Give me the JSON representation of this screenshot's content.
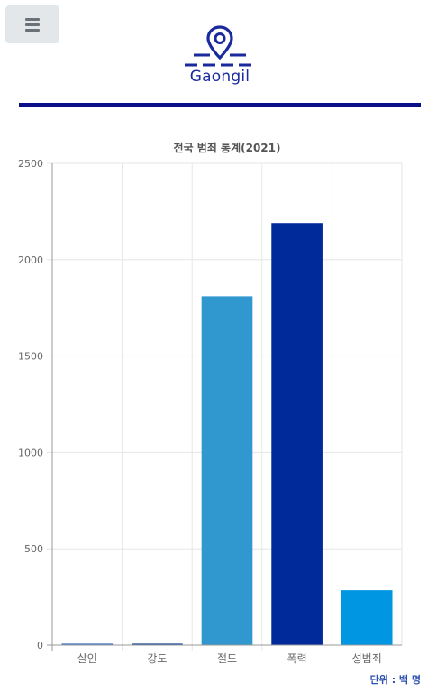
{
  "header": {
    "menu_icon": "hamburger-icon",
    "logo_icon": "location-pin-icon",
    "logo_text": "Gaongil",
    "rule_color": "#0b0f88"
  },
  "chart_data": {
    "type": "bar",
    "title": "전국 범죄 통계(2021)",
    "categories": [
      "살인",
      "강도",
      "절도",
      "폭력",
      "성범죄"
    ],
    "values": [
      8,
      8,
      1810,
      2190,
      285
    ],
    "colors": [
      "#4a7dc4",
      "#2d5aa0",
      "#3097cf",
      "#00299a",
      "#0096e2"
    ],
    "ylim": [
      0,
      2500
    ],
    "yticks": [
      0,
      500,
      1000,
      1500,
      2000,
      2500
    ],
    "ytick_labels": [
      "0",
      "500",
      "1000",
      "1500",
      "2000",
      "2500"
    ],
    "grid": true,
    "xlabel": "",
    "ylabel": ""
  },
  "footer": {
    "unit_label": "단위 : 백 명"
  }
}
